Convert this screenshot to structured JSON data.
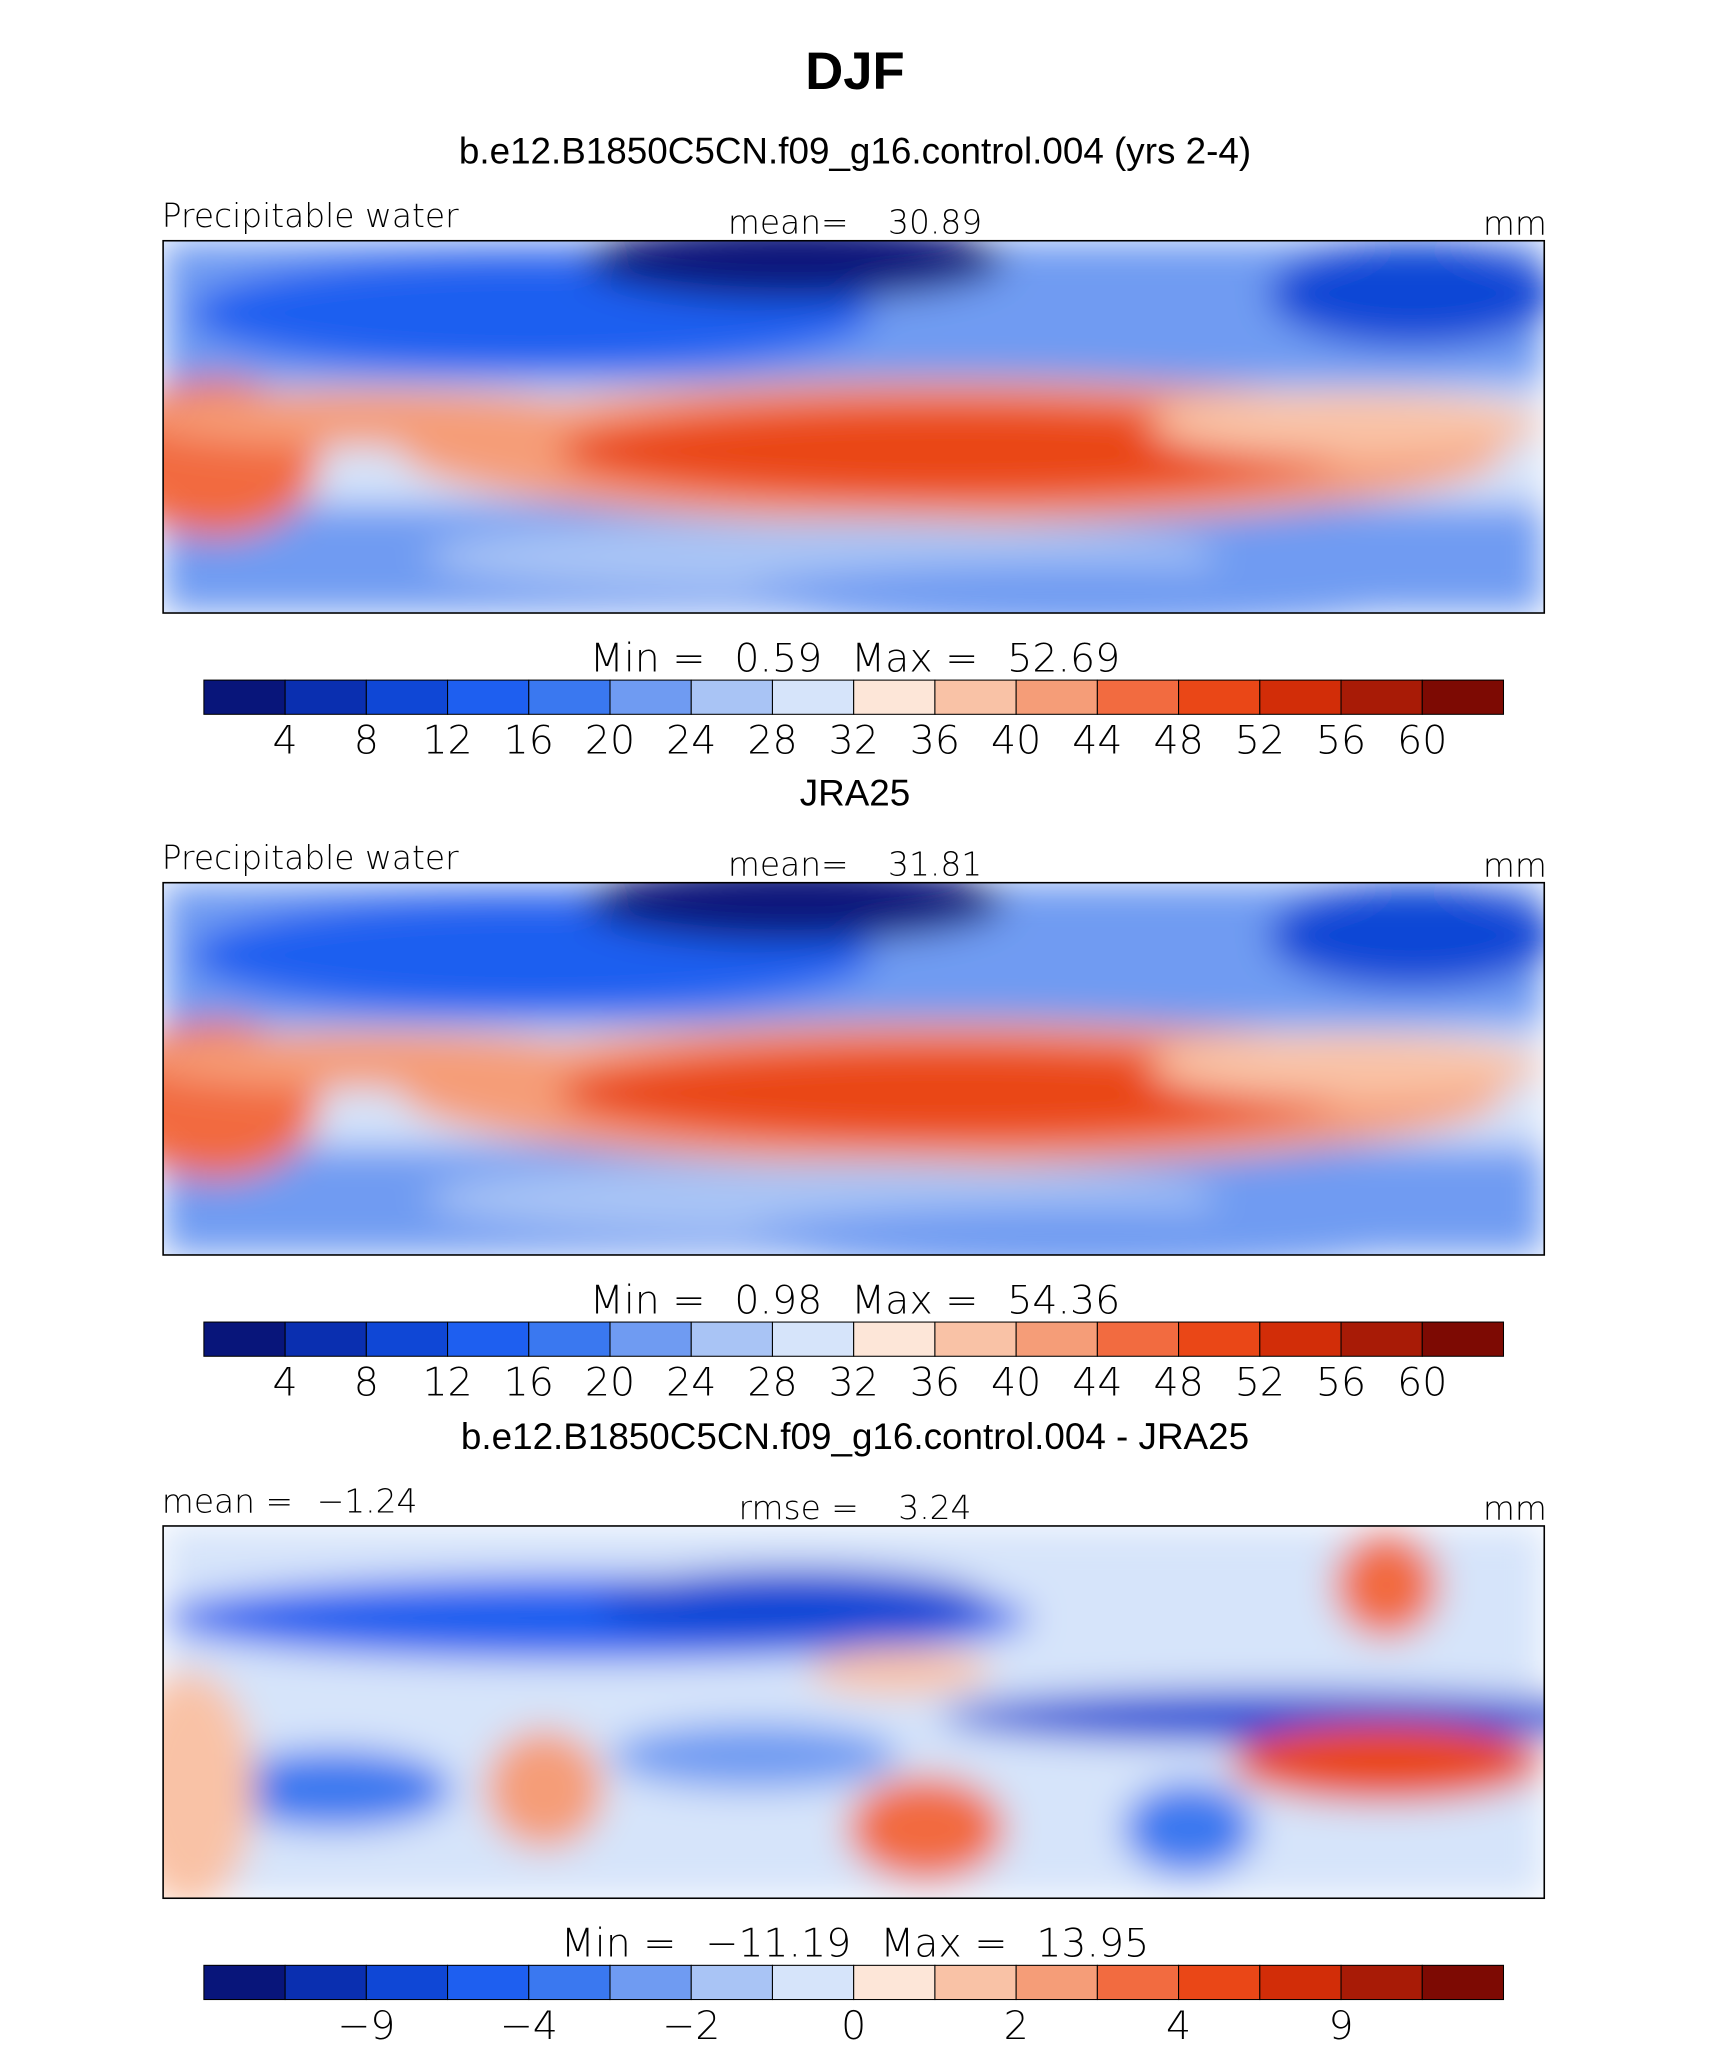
{
  "title": "DJF",
  "colors": [
    "#08157a",
    "#0a2fb0",
    "#0f47d6",
    "#1e5ff0",
    "#3a78f0",
    "#6f9bf2",
    "#a9c4f5",
    "#d6e4fa",
    "#fde6d8",
    "#f9c2a6",
    "#f59d78",
    "#f26b40",
    "#ea4717",
    "#d22d08",
    "#a81b06",
    "#7d0a03"
  ],
  "panels": [
    {
      "title": "b.e12.B1850C5CN.f09_g16.control.004 (yrs 2-4)",
      "left": [
        "Precipitable water"
      ],
      "center": [
        "mean=",
        30.89
      ],
      "right": "mm",
      "stats": [
        "Min =",
        0.59,
        "Max =",
        52.69
      ],
      "colorbar": [
        4,
        8,
        12,
        16,
        20,
        24,
        28,
        32,
        36,
        40,
        44,
        48,
        52,
        56,
        60
      ]
    },
    {
      "title": "JRA25",
      "left": [
        "Precipitable water"
      ],
      "center": [
        "mean=",
        31.81
      ],
      "right": "mm",
      "stats": [
        "Min =",
        0.98,
        "Max =",
        54.36
      ],
      "colorbar": [
        4,
        8,
        12,
        16,
        20,
        24,
        28,
        32,
        36,
        40,
        44,
        48,
        52,
        56,
        60
      ]
    },
    {
      "title": "b.e12.B1850C5CN.f09_g16.control.004 - JRA25",
      "left": [
        "mean =",
        "−1.24"
      ],
      "center": [
        "rmse =",
        3.24
      ],
      "right": "mm",
      "stats": [
        "Min =",
        "−11.19",
        "Max =",
        13.95
      ],
      "colorbar": [
        "−9",
        "−4",
        "−2",
        "0",
        "2",
        "4",
        "9"
      ]
    }
  ]
}
